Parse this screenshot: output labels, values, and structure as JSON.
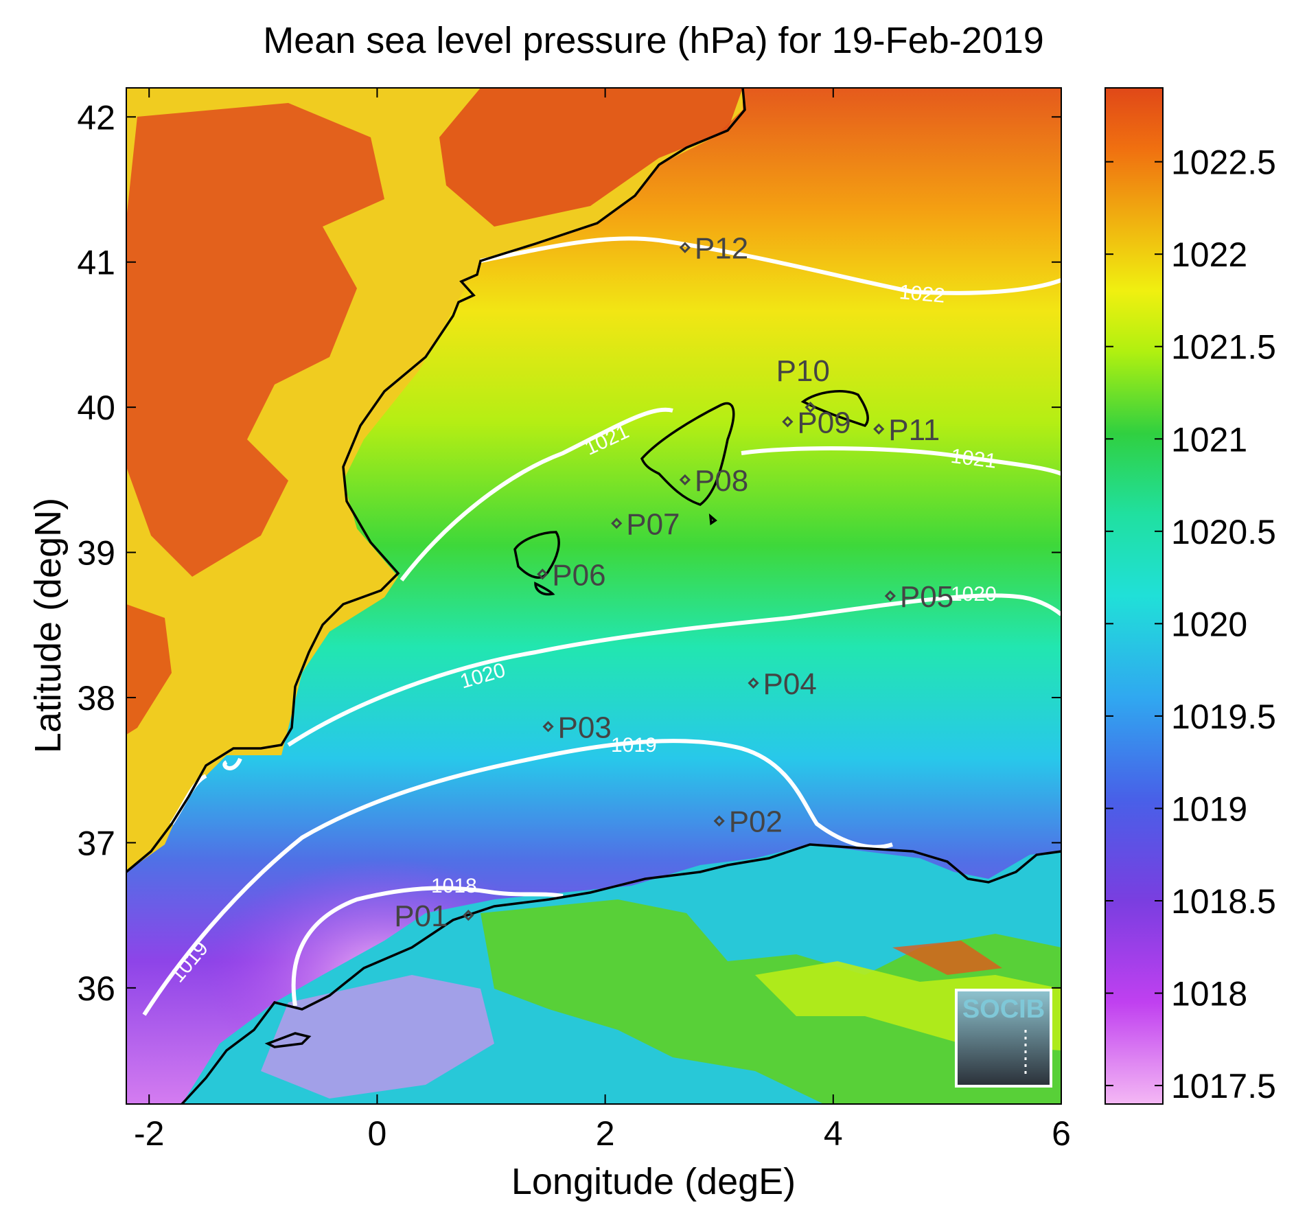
{
  "title": "Mean sea level pressure (hPa) for 19-Feb-2019",
  "map": {
    "xlabel": "Longitude (degE)",
    "ylabel": "Latitude (degN)",
    "xlim": [
      -2.2,
      6.0
    ],
    "ylim": [
      35.2,
      42.2
    ],
    "xticks": [
      -2,
      0,
      2,
      4,
      6
    ],
    "yticks": [
      36,
      37,
      38,
      39,
      40,
      41,
      42
    ],
    "stations": [
      {
        "name": "P01",
        "lon": 0.8,
        "lat": 36.5
      },
      {
        "name": "P02",
        "lon": 3.0,
        "lat": 37.15
      },
      {
        "name": "P03",
        "lon": 1.5,
        "lat": 37.8
      },
      {
        "name": "P04",
        "lon": 3.3,
        "lat": 38.1
      },
      {
        "name": "P05",
        "lon": 4.5,
        "lat": 38.7
      },
      {
        "name": "P06",
        "lon": 1.45,
        "lat": 38.85
      },
      {
        "name": "P07",
        "lon": 2.1,
        "lat": 39.2
      },
      {
        "name": "P08",
        "lon": 2.7,
        "lat": 39.5
      },
      {
        "name": "P09",
        "lon": 3.6,
        "lat": 39.9
      },
      {
        "name": "P10",
        "lon": 3.8,
        "lat": 40.0
      },
      {
        "name": "P11",
        "lon": 4.4,
        "lat": 39.85
      },
      {
        "name": "P12",
        "lon": 2.7,
        "lat": 41.1
      }
    ],
    "contour_labels": [
      "1022",
      "1021",
      "1021",
      "1020",
      "1020",
      "1019",
      "1019",
      "1018"
    ],
    "logo_text": "SOCIB"
  },
  "colorbar": {
    "min": 1017.4,
    "max": 1022.9,
    "ticks": [
      "1022.5",
      "1022",
      "1021.5",
      "1021",
      "1020.5",
      "1020",
      "1019.5",
      "1019",
      "1018.5",
      "1018",
      "1017.5"
    ],
    "colormap": [
      "#f4b8f4",
      "#c040f0",
      "#7a3ee0",
      "#4860e8",
      "#30a8f0",
      "#20e0d8",
      "#20e0a0",
      "#30d040",
      "#b0f010",
      "#f0f010",
      "#f0b010",
      "#f07010",
      "#e04818"
    ]
  },
  "colors": {
    "contour": "#ffffff",
    "coast": "#000000",
    "station": "#444444"
  }
}
